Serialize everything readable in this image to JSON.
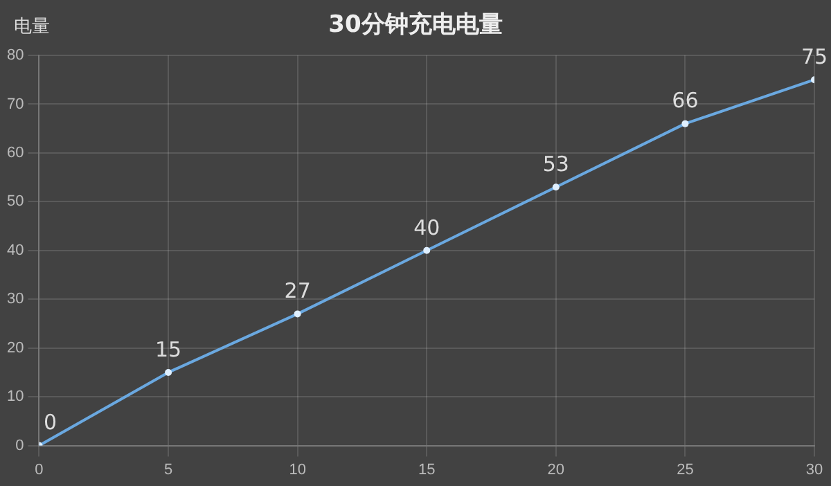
{
  "chart_data": {
    "type": "line",
    "title": "30分钟充电电量",
    "ylabel": "电量",
    "x": [
      0,
      5,
      10,
      15,
      20,
      25,
      30
    ],
    "series": [
      {
        "color": "#6aa8e0",
        "values": [
          0,
          15,
          27,
          40,
          53,
          66,
          75
        ]
      }
    ],
    "xlim": [
      0,
      30
    ],
    "xticks": [
      0,
      5,
      10,
      15,
      20,
      25,
      30
    ],
    "ylim": [
      0,
      80
    ],
    "yticks": [
      0,
      10,
      20,
      30,
      40,
      50,
      60,
      70,
      80
    ],
    "grid": true,
    "legend": false,
    "marker": "circle",
    "line_style": "solid",
    "data_labels": true
  }
}
